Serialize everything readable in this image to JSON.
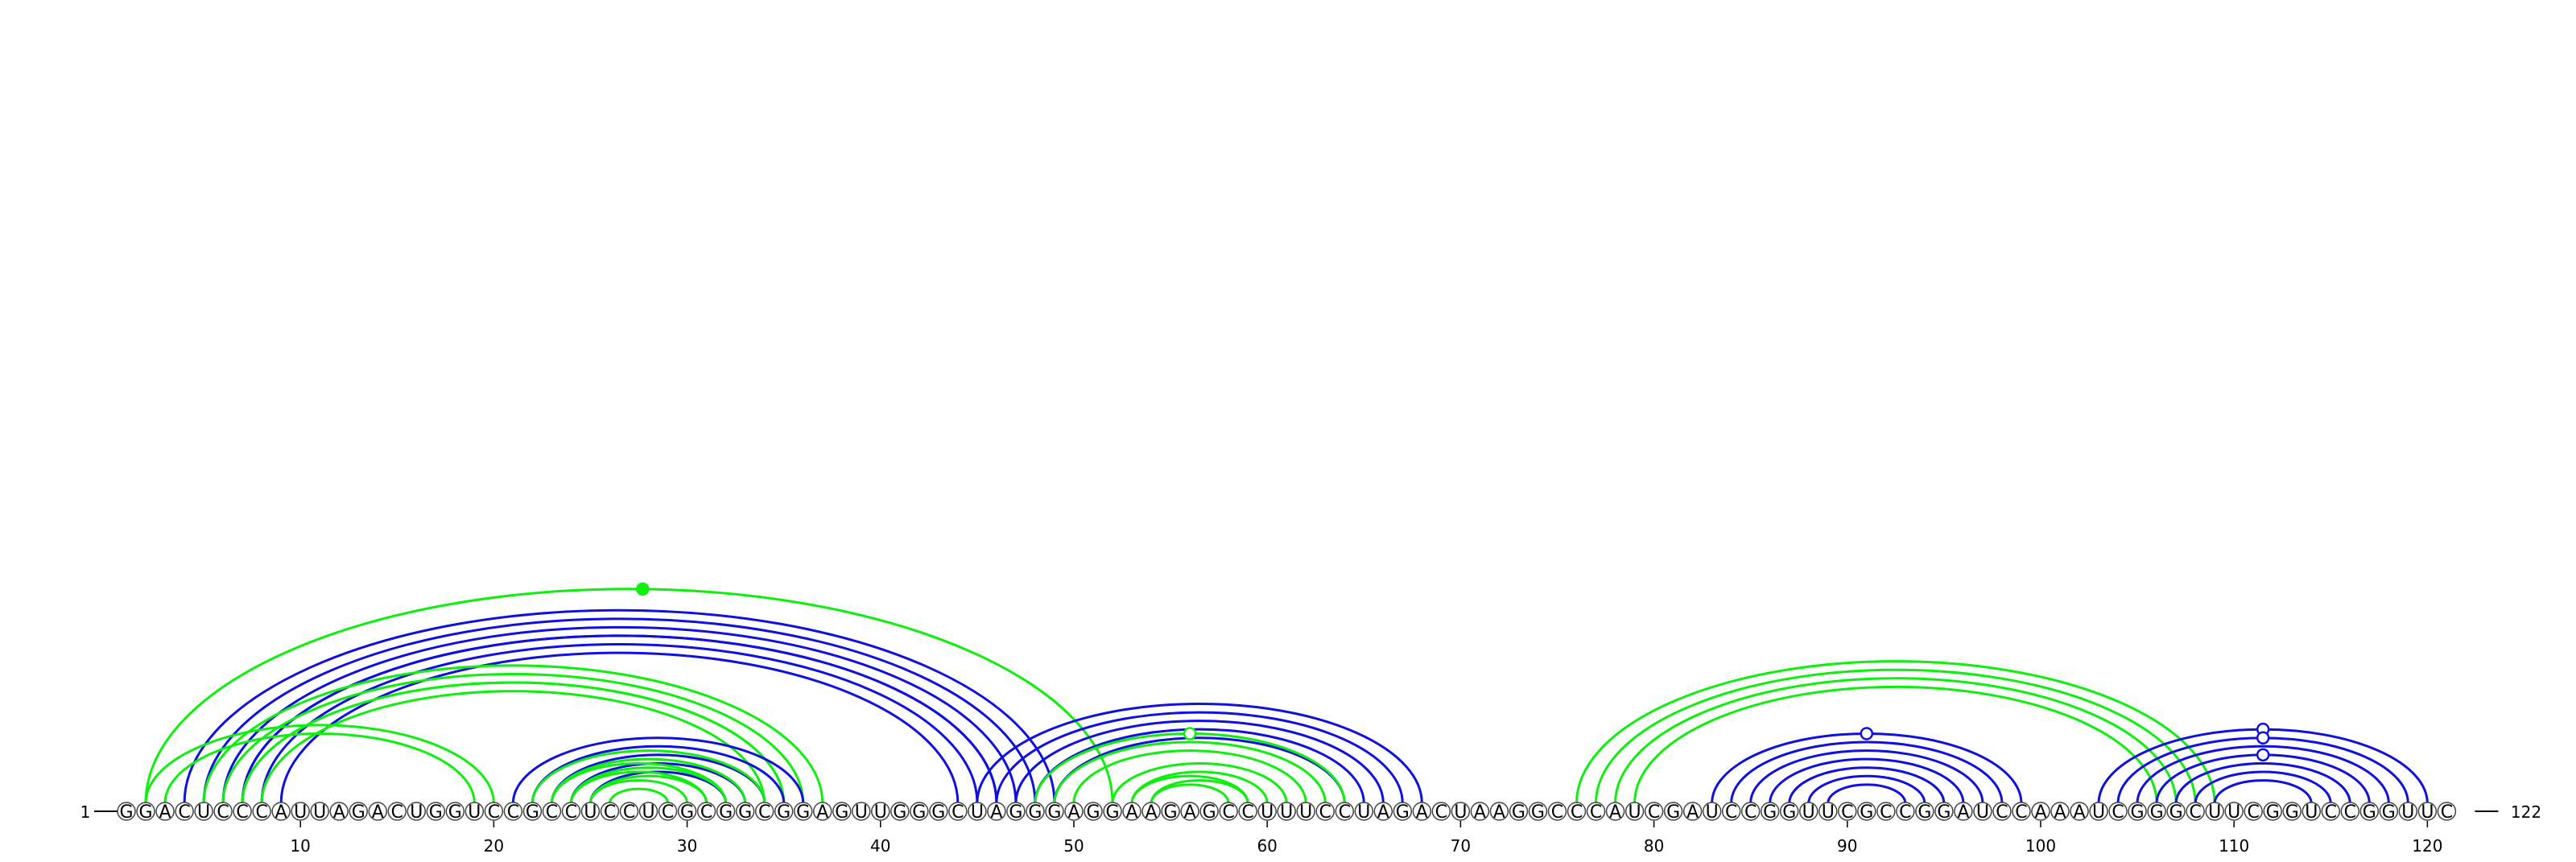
{
  "diagram": {
    "sequence": "GGACUCCCAUUAGACUGGUCCGCCUCCUCGCGGCGGAGUUGGGCUAGGGAGGAAGAGCCUUUCCUAGACUAAGGCCCAUCGAUCCGGUUCGCCGGAUCCAAAUCGGGCUUCGGUCCGGUUC",
    "length": 122,
    "start_label": "1",
    "end_label": "122",
    "tick_values": [
      "10",
      "20",
      "30",
      "40",
      "50",
      "60",
      "70",
      "80",
      "90",
      "100",
      "110",
      "120"
    ],
    "colors": {
      "blue": "#1010dd",
      "green": "#10ee10",
      "outline": "#444444"
    },
    "arc_groups": [
      {
        "color": "green",
        "start": 2,
        "end": 52,
        "count": 1,
        "markers": [
          {
            "pos": 27.7,
            "style": "filled"
          }
        ]
      },
      {
        "color": "blue",
        "start": 4,
        "end": 49,
        "count": 4
      },
      {
        "color": "blue",
        "start": 7,
        "end": 46,
        "count": 3
      },
      {
        "color": "green",
        "start": 5,
        "end": 37,
        "count": 3
      },
      {
        "color": "green",
        "start": 7,
        "end": 35,
        "count": 2
      },
      {
        "color": "green",
        "start": 2,
        "end": 20,
        "count": 2
      },
      {
        "color": "blue",
        "start": 21,
        "end": 36,
        "count": 5
      },
      {
        "color": "green",
        "start": 22,
        "end": 34,
        "count": 4
      },
      {
        "color": "green",
        "start": 23,
        "end": 32,
        "count": 4
      },
      {
        "color": "blue",
        "start": 45,
        "end": 68,
        "count": 5
      },
      {
        "color": "green",
        "start": 48,
        "end": 64,
        "count": 3,
        "markers": [
          {
            "pos": 56,
            "style": "open"
          }
        ]
      },
      {
        "color": "green",
        "start": 52,
        "end": 61,
        "count": 3
      },
      {
        "color": "green",
        "start": 53,
        "end": 59,
        "count": 2
      },
      {
        "color": "green",
        "start": 76,
        "end": 109,
        "count": 4
      },
      {
        "color": "blue",
        "start": 83,
        "end": 99,
        "count": 7,
        "markers": [
          {
            "pos": 91,
            "style": "open"
          }
        ]
      },
      {
        "color": "blue",
        "start": 103,
        "end": 120,
        "count": 7,
        "markers": [
          {
            "pos": 111.5,
            "style": "open"
          },
          {
            "pos": 111.5,
            "style": "open",
            "level": 3
          },
          {
            "pos": 111.5,
            "style": "open",
            "level": 1
          }
        ]
      }
    ]
  }
}
